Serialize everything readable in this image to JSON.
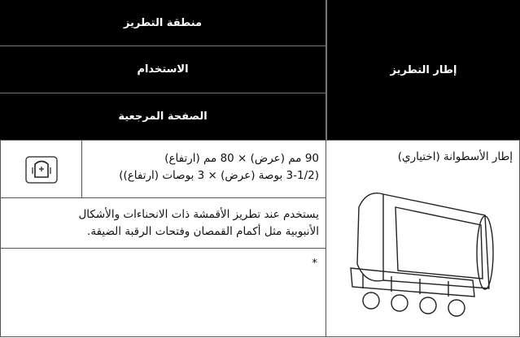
{
  "header": {
    "frame_column": "إطار التطريز",
    "columns": [
      "منطقة التطريز",
      "الاستخدام",
      "الصفحة المرجعية"
    ]
  },
  "row": {
    "frame_name": "إطار الأسطوانة (اختياري)",
    "embroidery_area": [
      "90 مم (عرض) × 80 مم (ارتفاع)",
      "(3-1/2 بوصة (عرض) × 3 بوصات (ارتفاع))"
    ],
    "usage": [
      "يستخدم عند تطريز الأقمشة ذات الانحناءات والأشكال",
      "الأنبوبية مثل أكمام القمصان وفتحات الرقبة الضيقة."
    ],
    "reference_page": "*"
  }
}
